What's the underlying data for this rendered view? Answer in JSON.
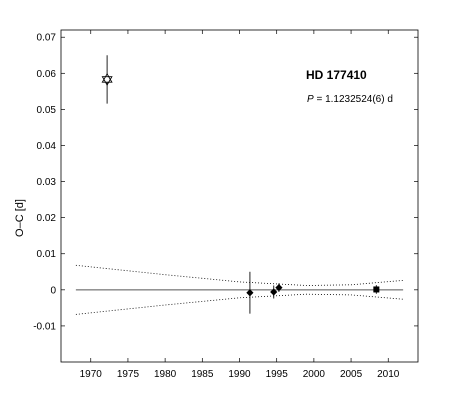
{
  "chart_data": {
    "type": "scatter",
    "title": "",
    "xlabel": "",
    "ylabel": "O–C  [d]",
    "xlim": [
      1966,
      2014
    ],
    "ylim": [
      -0.02,
      0.072
    ],
    "x_ticks": [
      1970,
      1975,
      1980,
      1985,
      1990,
      1995,
      2000,
      2005,
      2010
    ],
    "y_ticks": [
      -0.01,
      0,
      0.01,
      0.02,
      0.03,
      0.04,
      0.05,
      0.06,
      0.07
    ],
    "y_tick_labels": [
      "-0.01",
      "0",
      "0.01",
      "0.02",
      "0.03",
      "0.04",
      "0.05",
      "0.06",
      "0.07"
    ],
    "grid": false,
    "annotation": {
      "star_name": "HD 177410",
      "period_symbol": "P",
      "period_value": " = 1.1232524(6) d"
    },
    "points": [
      {
        "x": 1972.2,
        "y": 0.0583,
        "err": 0.0067,
        "marker": "open-star"
      },
      {
        "x": 1991.4,
        "y": -0.0008,
        "err": 0.0058,
        "marker": "filled-diamond"
      },
      {
        "x": 1994.6,
        "y": -0.0006,
        "err": 0.0018,
        "marker": "filled-diamond"
      },
      {
        "x": 1995.3,
        "y": 0.0006,
        "err": 0.0012,
        "marker": "filled-diamond"
      },
      {
        "x": 2008.4,
        "y": 0.0001,
        "err": 0.0012,
        "marker": "filled-square"
      }
    ],
    "zero_line": {
      "x": [
        1968,
        2012
      ],
      "y": 0
    },
    "confidence_bands": {
      "upper": [
        [
          1968,
          0.0068
        ],
        [
          1980,
          0.0042
        ],
        [
          1990,
          0.0022
        ],
        [
          1999,
          0.0012
        ],
        [
          2005,
          0.0014
        ],
        [
          2012,
          0.0026
        ]
      ],
      "lower": [
        [
          1968,
          -0.0068
        ],
        [
          1980,
          -0.0042
        ],
        [
          1990,
          -0.0022
        ],
        [
          1999,
          -0.0012
        ],
        [
          2005,
          -0.0014
        ],
        [
          2012,
          -0.0026
        ]
      ]
    }
  }
}
